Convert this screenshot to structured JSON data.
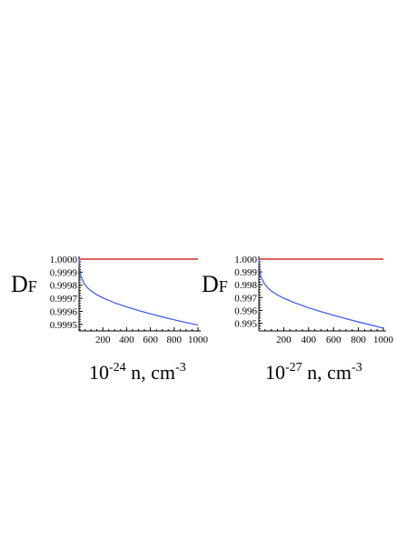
{
  "chart_data": [
    {
      "type": "line",
      "ylabel_main": "D",
      "ylabel_sub": "F",
      "xlabel_prefix": "10",
      "xlabel_exp1": "-24",
      "xlabel_mid": " n, cm",
      "xlabel_exp2": "-3",
      "xlim": [
        0,
        1000
      ],
      "ylim": [
        0.99945,
        1.0
      ],
      "x_ticks": [
        200,
        400,
        600,
        800,
        1000
      ],
      "x_tick_labels": [
        "200",
        "400",
        "600",
        "800",
        "1000"
      ],
      "y_ticks": [
        1.0,
        0.9999,
        0.9998,
        0.9997,
        0.9996,
        0.9995
      ],
      "y_tick_labels": [
        "1.0000",
        "0.9999",
        "0.9998",
        "0.9997",
        "0.9996",
        "0.9995"
      ],
      "series": [
        {
          "color": "#cc0000",
          "x": [
            0,
            1000
          ],
          "y": [
            1.0,
            1.0
          ]
        },
        {
          "color": "#3355ee",
          "x": [
            0,
            5,
            10,
            20,
            40,
            60,
            80,
            100,
            150,
            200,
            300,
            400,
            500,
            600,
            700,
            800,
            900,
            1000
          ],
          "y": [
            1.0,
            0.99992,
            0.99989,
            0.999858,
            0.999818,
            0.999792,
            0.999773,
            0.999757,
            0.999727,
            0.999703,
            0.999665,
            0.999634,
            0.999606,
            0.999581,
            0.999557,
            0.999535,
            0.999514,
            0.999495
          ]
        }
      ]
    },
    {
      "type": "line",
      "ylabel_main": "D",
      "ylabel_sub": "F",
      "xlabel_prefix": "10",
      "xlabel_exp1": "-27",
      "xlabel_mid": " n, cm",
      "xlabel_exp2": "-3",
      "xlim": [
        0,
        1000
      ],
      "ylim": [
        0.9944,
        1.0
      ],
      "x_ticks": [
        200,
        400,
        600,
        800,
        1000
      ],
      "x_tick_labels": [
        "200",
        "400",
        "600",
        "800",
        "1000"
      ],
      "y_ticks": [
        1.0,
        0.999,
        0.998,
        0.997,
        0.996,
        0.995
      ],
      "y_tick_labels": [
        "1.000",
        "0.999",
        "0.998",
        "0.997",
        "0.996",
        "0.995"
      ],
      "series": [
        {
          "color": "#cc0000",
          "x": [
            0,
            1000
          ],
          "y": [
            1.0,
            1.0
          ]
        },
        {
          "color": "#3355ee",
          "x": [
            0,
            5,
            10,
            20,
            40,
            60,
            80,
            100,
            150,
            200,
            300,
            400,
            500,
            600,
            700,
            800,
            900,
            1000
          ],
          "y": [
            1.0,
            0.9992,
            0.99888,
            0.99855,
            0.99815,
            0.99788,
            0.99768,
            0.99752,
            0.9972,
            0.99695,
            0.99655,
            0.9962,
            0.9959,
            0.99562,
            0.99535,
            0.9951,
            0.99486,
            0.99462
          ]
        }
      ]
    }
  ]
}
